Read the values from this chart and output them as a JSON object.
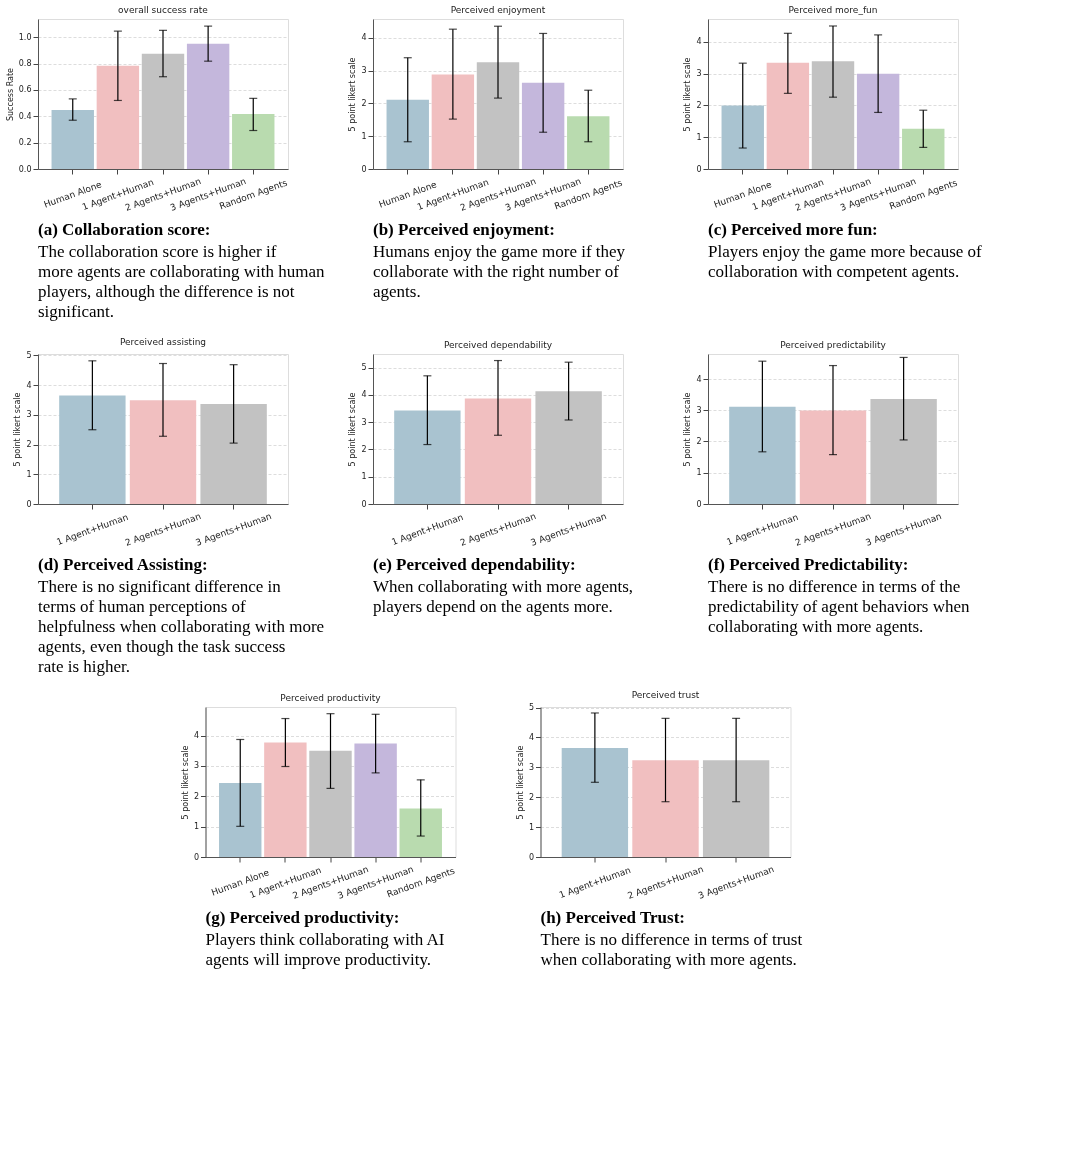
{
  "chart_data": [
    {
      "type": "bar",
      "title": "overall success rate",
      "ylabel": "Success Rate",
      "categories": [
        "Human Alone",
        "1 Agent+Human",
        "2 Agents+Human",
        "3 Agents+Human",
        "Random Agents"
      ],
      "values": [
        0.448,
        0.784,
        0.874,
        0.95,
        0.418
      ],
      "colors": [
        "#a9c3d0",
        "#f1bfc0",
        "#c2c2c2",
        "#c4b7dc",
        "#b9dbaf"
      ],
      "errors": [
        [
          0.37,
          0.532
        ],
        [
          0.52,
          1.046
        ],
        [
          0.7,
          1.052
        ],
        [
          0.818,
          1.084
        ],
        [
          0.292,
          0.536
        ]
      ],
      "ylim": [
        0,
        1.138
      ],
      "yticks": [
        {
          "value": 0,
          "label": "0.0"
        },
        0.2,
        0.4,
        0.6,
        0.8,
        {
          "value": 1,
          "label": "1.0"
        }
      ],
      "grid": "y",
      "annotations": [
        "(a) Collaboration score:",
        "The collaboration score is higher if more agents are collaborating with human players, although the difference is not significant."
      ]
    },
    {
      "type": "bar",
      "title": "Perceived enjoyment",
      "ylabel": "5 point likert  scale",
      "categories": [
        "Human Alone",
        "1 Agent+Human",
        "2 Agents+Human",
        "3 Agents+Human",
        "Random Agents"
      ],
      "values": [
        2.11,
        2.88,
        3.25,
        2.63,
        1.61
      ],
      "colors": [
        "#a9c3d0",
        "#f1bfc0",
        "#c2c2c2",
        "#c4b7dc",
        "#b9dbaf"
      ],
      "errors": [
        [
          0.83,
          3.39
        ],
        [
          1.52,
          4.26
        ],
        [
          2.16,
          4.35
        ],
        [
          1.12,
          4.13
        ],
        [
          0.83,
          2.4
        ]
      ],
      "ylim": [
        0,
        4.57
      ],
      "yticks": [
        0,
        1,
        2,
        3,
        4
      ],
      "grid": "y",
      "annotations": [
        "(b) Perceived enjoyment:",
        "Humans enjoy the game more if they collaborate with the right number of agents."
      ]
    },
    {
      "type": "bar",
      "title": "Perceived more_fun",
      "ylabel": "5 point likert  scale",
      "categories": [
        "Human Alone",
        "1 Agent+Human",
        "2 Agents+Human",
        "3 Agents+Human",
        "Random Agents"
      ],
      "values": [
        2.0,
        3.34,
        3.39,
        3.0,
        1.27
      ],
      "colors": [
        "#a9c3d0",
        "#f1bfc0",
        "#c2c2c2",
        "#c4b7dc",
        "#b9dbaf"
      ],
      "errors": [
        [
          0.66,
          3.33
        ],
        [
          2.38,
          4.27
        ],
        [
          2.26,
          4.5
        ],
        [
          1.78,
          4.22
        ],
        [
          0.68,
          1.85
        ]
      ],
      "ylim": [
        0,
        4.72
      ],
      "yticks": [
        0,
        1,
        2,
        3,
        4
      ],
      "grid": "y",
      "annotations": [
        "(c) Perceived more fun:",
        "Players enjoy the game more because of collaboration with competent agents."
      ]
    },
    {
      "type": "bar",
      "title": "Perceived assisting",
      "ylabel": "5 point likert  scale",
      "categories": [
        "1 Agent+Human",
        "2 Agents+Human",
        "3 Agents+Human"
      ],
      "values": [
        3.65,
        3.49,
        3.37
      ],
      "colors": [
        "#a9c3d0",
        "#f1bfc0",
        "#c2c2c2"
      ],
      "errors": [
        [
          2.5,
          4.82
        ],
        [
          2.28,
          4.73
        ],
        [
          2.05,
          4.69
        ]
      ],
      "ylim": [
        0,
        5.05
      ],
      "yticks": [
        0,
        1,
        2,
        3,
        4,
        5
      ],
      "grid": "y",
      "annotations": [
        "(d) Perceived Assisting:",
        "There is no significant difference in terms of human perceptions of helpfulness when collaborating with more agents, even though the task success rate is higher."
      ]
    },
    {
      "type": "bar",
      "title": "Perceived dependability",
      "ylabel": "5 point likert  scale",
      "categories": [
        "1 Agent+Human",
        "2 Agents+Human",
        "3 Agents+Human"
      ],
      "values": [
        3.43,
        3.87,
        4.13
      ],
      "colors": [
        "#a9c3d0",
        "#f1bfc0",
        "#c2c2c2"
      ],
      "errors": [
        [
          2.18,
          4.7
        ],
        [
          2.52,
          5.26
        ],
        [
          3.08,
          5.2
        ]
      ],
      "ylim": [
        0,
        5.5
      ],
      "yticks": [
        0,
        1,
        2,
        3,
        4,
        5
      ],
      "grid": "y",
      "annotations": [
        "(e) Perceived dependability:",
        "When collaborating with more agents, players depend on the agents more."
      ]
    },
    {
      "type": "bar",
      "title": "Perceived predictability",
      "ylabel": "5 point likert  scale",
      "categories": [
        "1 Agent+Human",
        "2 Agents+Human",
        "3 Agents+Human"
      ],
      "values": [
        3.11,
        2.99,
        3.36
      ],
      "colors": [
        "#a9c3d0",
        "#f1bfc0",
        "#c2c2c2"
      ],
      "errors": [
        [
          1.67,
          4.57
        ],
        [
          1.58,
          4.43
        ],
        [
          2.05,
          4.69
        ]
      ],
      "ylim": [
        0,
        4.8
      ],
      "yticks": [
        0,
        1,
        2,
        3,
        4
      ],
      "grid": "y",
      "annotations": [
        "(f) Perceived Predictability:",
        "There is no difference in terms of the predictability of agent behaviors when collaborating with more agents."
      ]
    },
    {
      "type": "bar",
      "title": "Perceived productivity",
      "ylabel": "5 point likert  scale",
      "categories": [
        "Human Alone",
        "1 Agent+Human",
        "2 Agents+Human",
        "3 Agents+Human",
        "Random Agents"
      ],
      "values": [
        2.44,
        3.77,
        3.5,
        3.74,
        1.6
      ],
      "colors": [
        "#a9c3d0",
        "#f1bfc0",
        "#c2c2c2",
        "#c4b7dc",
        "#b9dbaf"
      ],
      "errors": [
        [
          1.01,
          3.87
        ],
        [
          2.98,
          4.56
        ],
        [
          2.26,
          4.72
        ],
        [
          2.77,
          4.7
        ],
        [
          0.69,
          2.54
        ]
      ],
      "ylim": [
        0,
        4.94
      ],
      "yticks": [
        0,
        1,
        2,
        3,
        4
      ],
      "grid": "y",
      "annotations": [
        "(g) Perceived productivity:",
        "Players think collaborating with AI agents will improve productivity."
      ]
    },
    {
      "type": "bar",
      "title": "Perceived trust",
      "ylabel": "5 point likert  scale",
      "categories": [
        "1 Agent+Human",
        "2 Agents+Human",
        "3 Agents+Human"
      ],
      "values": [
        3.65,
        3.24,
        3.24
      ],
      "colors": [
        "#a9c3d0",
        "#f1bfc0",
        "#c2c2c2"
      ],
      "errors": [
        [
          2.5,
          4.82
        ],
        [
          1.85,
          4.64
        ],
        [
          1.85,
          4.64
        ]
      ],
      "ylim": [
        0,
        5.02
      ],
      "yticks": [
        0,
        1,
        2,
        3,
        4,
        5
      ],
      "grid": "y",
      "annotations": [
        "(h) Perceived Trust:",
        "There is no difference in terms of trust when collaborating with more agents."
      ]
    }
  ]
}
